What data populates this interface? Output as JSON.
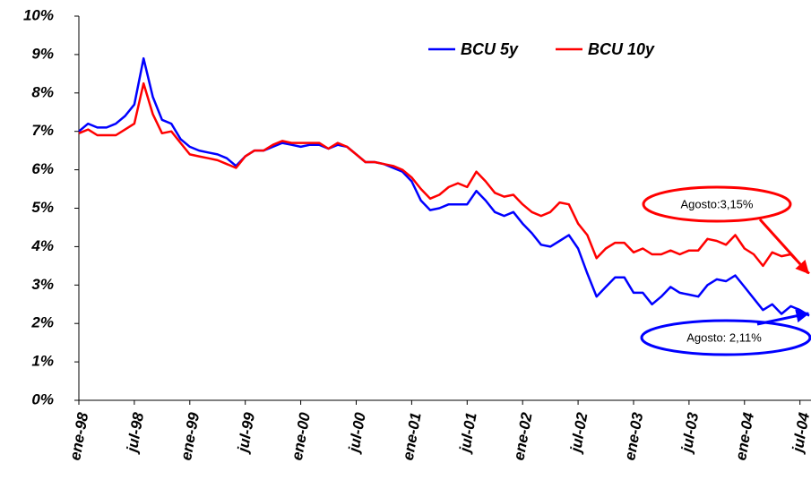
{
  "chart_data": {
    "type": "line",
    "categories": [
      "ene-98",
      null,
      null,
      null,
      null,
      null,
      "jul-98",
      null,
      null,
      null,
      null,
      null,
      "ene-99",
      null,
      null,
      null,
      null,
      null,
      "jul-99",
      null,
      null,
      null,
      null,
      null,
      "ene-00",
      null,
      null,
      null,
      null,
      null,
      "jul-00",
      null,
      null,
      null,
      null,
      null,
      "ene-01",
      null,
      null,
      null,
      null,
      null,
      "jul-01",
      null,
      null,
      null,
      null,
      null,
      "ene-02",
      null,
      null,
      null,
      null,
      null,
      "jul-02",
      null,
      null,
      null,
      null,
      null,
      "ene-03",
      null,
      null,
      null,
      null,
      null,
      "jul-03",
      null,
      null,
      null,
      null,
      null,
      "ene-04",
      null,
      null,
      null,
      null,
      null,
      "jul-04",
      null
    ],
    "series": [
      {
        "name": "BCU 5y",
        "color": "#0000ff",
        "values": [
          7.0,
          7.2,
          7.1,
          7.1,
          7.2,
          7.4,
          7.7,
          8.9,
          7.9,
          7.3,
          7.2,
          6.8,
          6.6,
          6.5,
          6.45,
          6.4,
          6.3,
          6.1,
          6.35,
          6.5,
          6.5,
          6.6,
          6.7,
          6.65,
          6.6,
          6.65,
          6.65,
          6.55,
          6.65,
          6.6,
          6.4,
          6.2,
          6.2,
          6.15,
          6.05,
          5.95,
          5.7,
          5.2,
          4.95,
          5.0,
          5.1,
          5.1,
          5.1,
          5.45,
          5.2,
          4.9,
          4.8,
          4.9,
          4.6,
          4.35,
          4.05,
          4.0,
          4.15,
          4.3,
          3.95,
          3.3,
          2.7,
          2.95,
          3.2,
          3.2,
          2.8,
          2.8,
          2.5,
          2.7,
          2.95,
          2.8,
          2.75,
          2.7,
          3.0,
          3.15,
          3.1,
          3.25,
          2.95,
          2.65,
          2.35,
          2.5,
          2.25,
          2.45,
          2.35,
          2.2
        ]
      },
      {
        "name": "BCU 10y",
        "color": "#ff0000",
        "values": [
          6.95,
          7.05,
          6.9,
          6.9,
          6.9,
          7.05,
          7.2,
          8.25,
          7.45,
          6.95,
          7.0,
          6.7,
          6.4,
          6.35,
          6.3,
          6.25,
          6.15,
          6.05,
          6.35,
          6.5,
          6.5,
          6.65,
          6.75,
          6.7,
          6.7,
          6.7,
          6.7,
          6.55,
          6.7,
          6.6,
          6.4,
          6.2,
          6.2,
          6.15,
          6.1,
          6.0,
          5.8,
          5.5,
          5.25,
          5.35,
          5.55,
          5.65,
          5.55,
          5.95,
          5.7,
          5.4,
          5.3,
          5.35,
          5.1,
          4.9,
          4.8,
          4.9,
          5.15,
          5.1,
          4.6,
          4.3,
          3.7,
          3.95,
          4.1,
          4.1,
          3.85,
          3.95,
          3.8,
          3.8,
          3.9,
          3.8,
          3.9,
          3.9,
          4.2,
          4.15,
          4.05,
          4.3,
          3.95,
          3.8,
          3.5,
          3.85,
          3.75,
          3.8,
          3.55,
          3.3
        ]
      }
    ],
    "ylim": [
      0,
      10
    ],
    "yticks": [
      {
        "value": 0,
        "label": "0%"
      },
      {
        "value": 1,
        "label": "1%"
      },
      {
        "value": 2,
        "label": "2%"
      },
      {
        "value": 3,
        "label": "3%"
      },
      {
        "value": 4,
        "label": "4%"
      },
      {
        "value": 5,
        "label": "5%"
      },
      {
        "value": 6,
        "label": "6%"
      },
      {
        "value": 7,
        "label": "7%"
      },
      {
        "value": 8,
        "label": "8%"
      },
      {
        "value": 9,
        "label": "9%"
      },
      {
        "value": 10,
        "label": "10%"
      }
    ],
    "annotations": [
      "Agosto:3,15%",
      "Agosto: 2,11%"
    ],
    "grid": false,
    "legend": "top"
  }
}
